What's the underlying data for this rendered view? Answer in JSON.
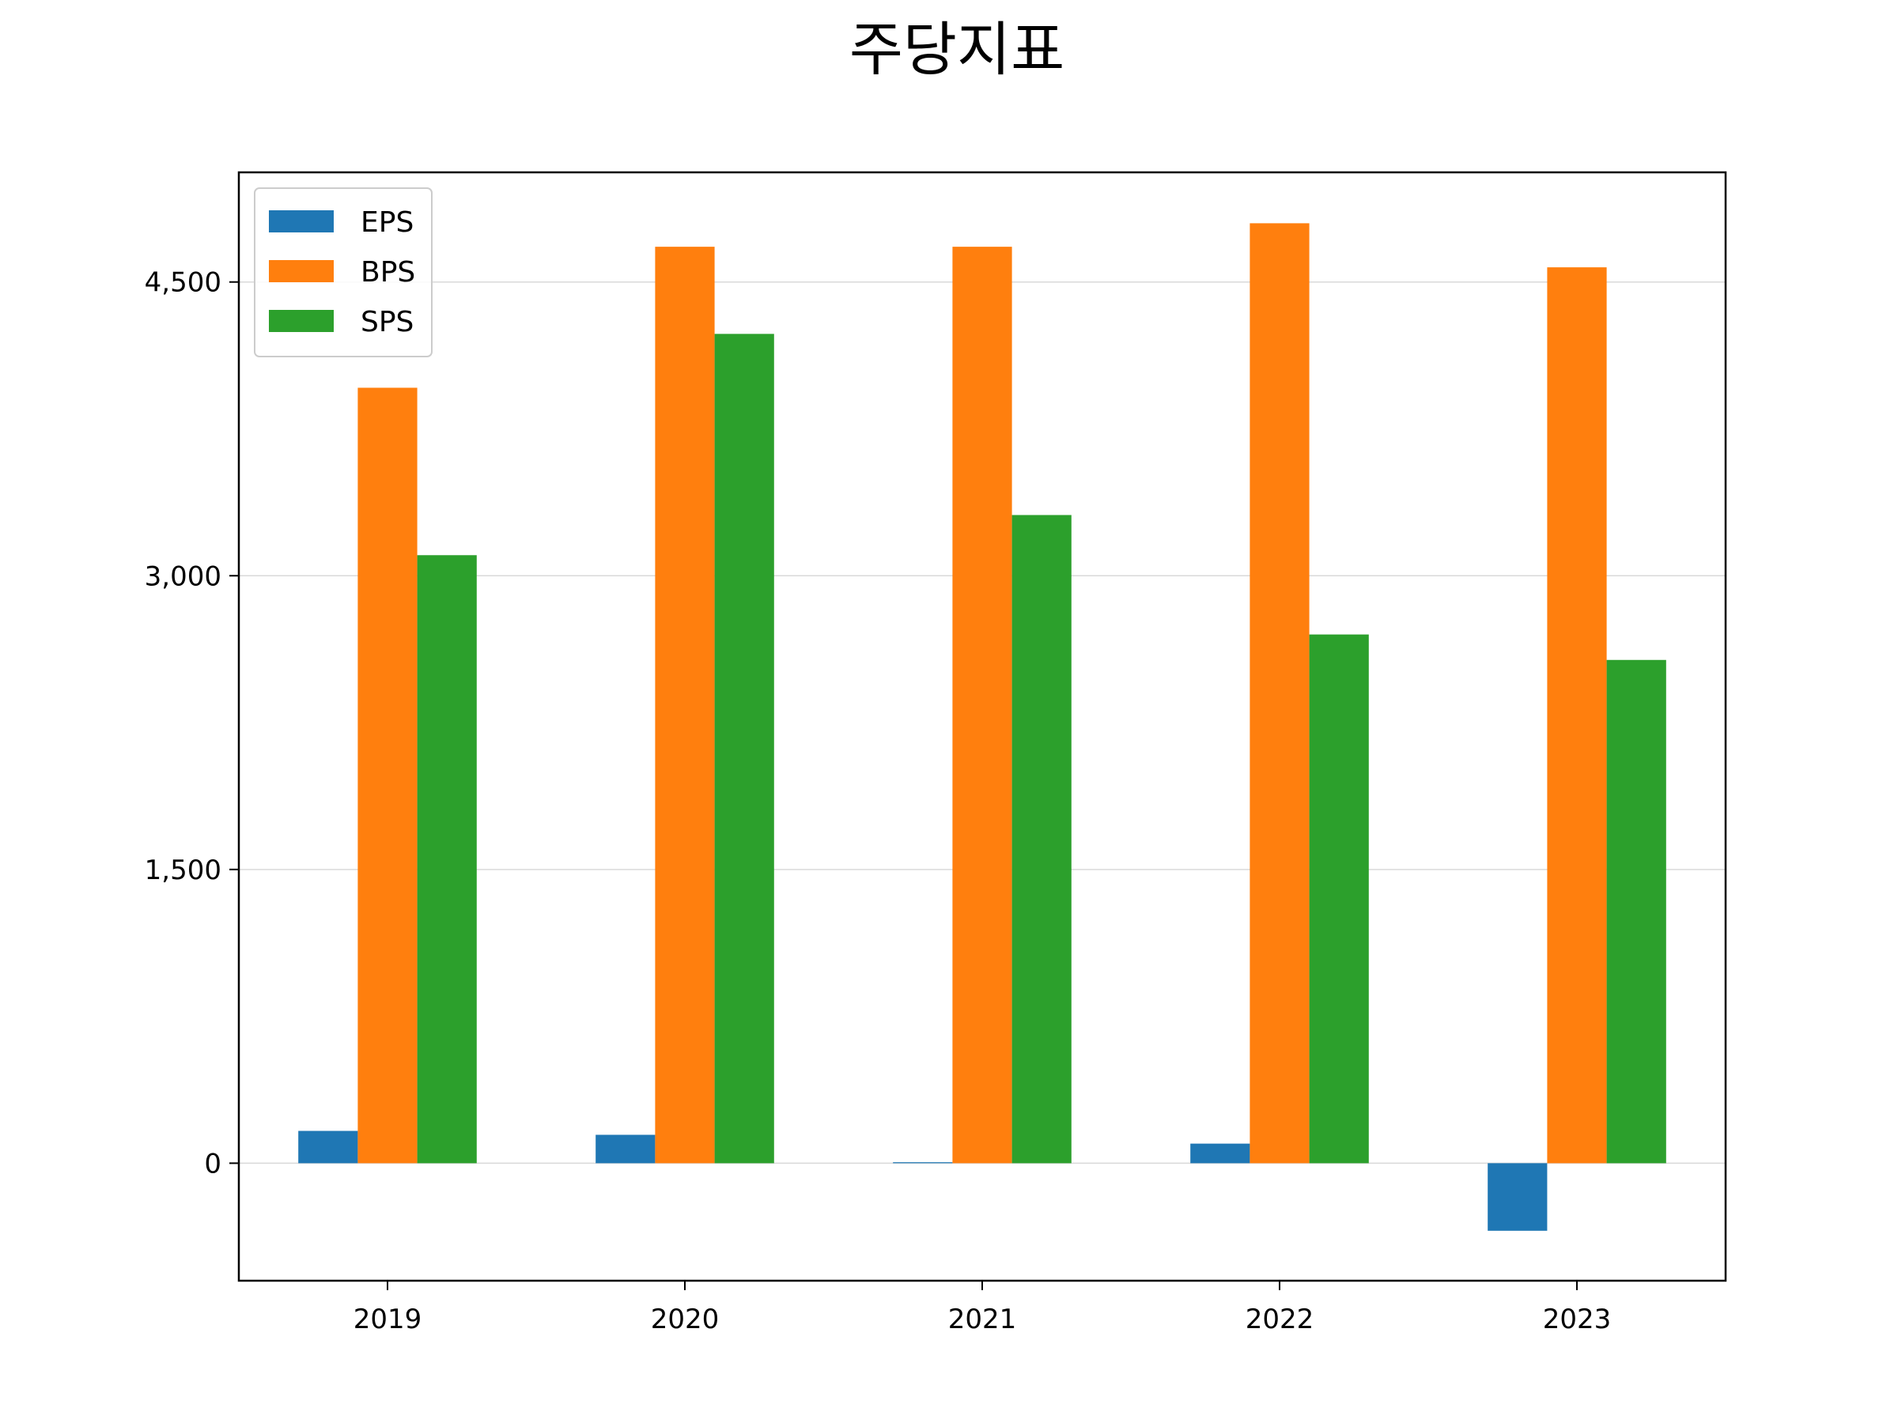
{
  "chart_data": {
    "type": "bar",
    "title": "주당지표",
    "xlabel": "",
    "ylabel": "",
    "categories": [
      "2019",
      "2020",
      "2021",
      "2022",
      "2023"
    ],
    "series": [
      {
        "name": "EPS",
        "color": "#1f77b4",
        "values": [
          165,
          145,
          5,
          100,
          -345
        ]
      },
      {
        "name": "BPS",
        "color": "#ff7f0e",
        "values": [
          3960,
          4680,
          4680,
          4800,
          4575
        ]
      },
      {
        "name": "SPS",
        "color": "#2ca02c",
        "values": [
          3105,
          4235,
          3310,
          2700,
          2570
        ]
      }
    ],
    "ylim": [
      -600,
      5060
    ],
    "yticks": [
      0,
      1500,
      3000,
      4500
    ],
    "ytick_labels": [
      "0",
      "1,500",
      "3,000",
      "4,500"
    ],
    "grid": "y",
    "legend_position": "upper-left"
  }
}
